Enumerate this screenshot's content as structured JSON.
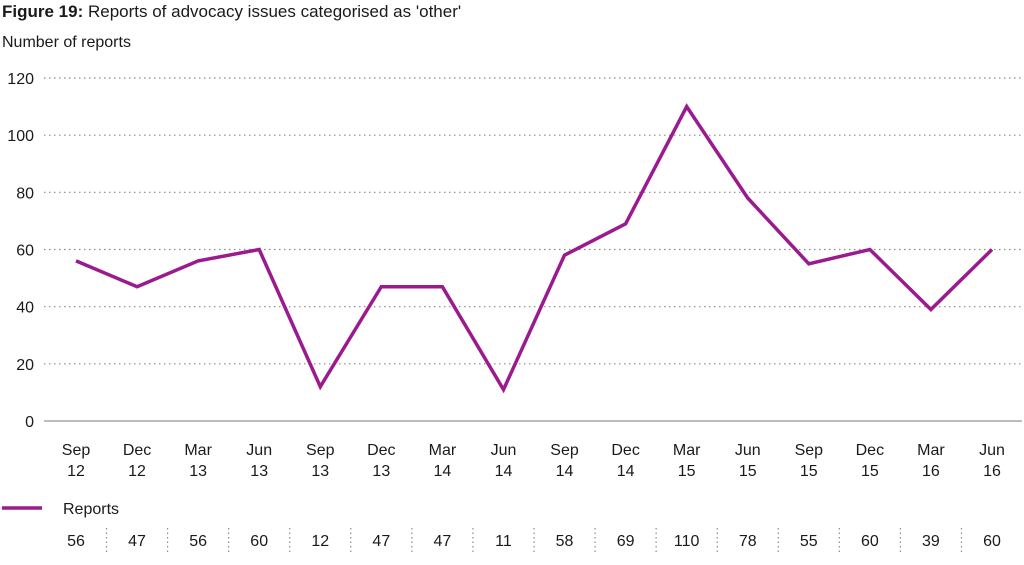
{
  "title_prefix": "Figure 19:",
  "title_text": " Reports of advocacy issues categorised as 'other'",
  "chart_data": {
    "type": "line",
    "title": "Figure 19: Reports of advocacy issues categorised as 'other'",
    "ylabel": "Number of reports",
    "xlabel": "",
    "ylim": [
      0,
      120
    ],
    "yticks": [
      0,
      20,
      40,
      60,
      80,
      100,
      120
    ],
    "grid": true,
    "legend_position": "bottom-left",
    "categories": [
      [
        "Sep",
        "12"
      ],
      [
        "Dec",
        "12"
      ],
      [
        "Mar",
        "13"
      ],
      [
        "Jun",
        "13"
      ],
      [
        "Sep",
        "13"
      ],
      [
        "Dec",
        "13"
      ],
      [
        "Mar",
        "14"
      ],
      [
        "Jun",
        "14"
      ],
      [
        "Sep",
        "14"
      ],
      [
        "Dec",
        "14"
      ],
      [
        "Mar",
        "15"
      ],
      [
        "Jun",
        "15"
      ],
      [
        "Sep",
        "15"
      ],
      [
        "Dec",
        "15"
      ],
      [
        "Mar",
        "16"
      ],
      [
        "Jun",
        "16"
      ]
    ],
    "series": [
      {
        "name": "Reports",
        "color": "#9b1a8e",
        "values": [
          56,
          47,
          56,
          60,
          12,
          47,
          47,
          11,
          58,
          69,
          110,
          78,
          55,
          60,
          39,
          60
        ]
      }
    ]
  }
}
